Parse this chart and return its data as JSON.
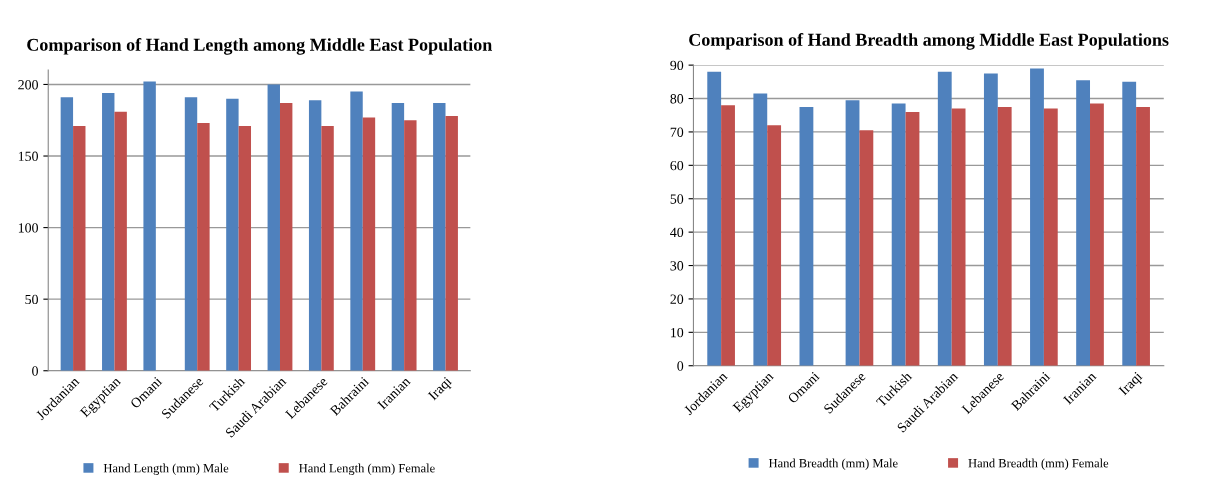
{
  "chart_data": [
    {
      "type": "bar",
      "title": "Comparison of Hand Length among Middle East Population",
      "categories": [
        "Jordanian",
        "Egyptian",
        "Omani",
        "Sudanese",
        "Turkish",
        "Saudi Arabian",
        "Lebanese",
        "Bahraini",
        "Iranian",
        "Iraqi"
      ],
      "series": [
        {
          "name": "Hand Length (mm) Male",
          "color": "#4f81bd",
          "values": [
            191,
            194,
            202,
            191,
            190,
            200,
            189,
            195,
            187,
            187
          ]
        },
        {
          "name": "Hand Length (mm) Female",
          "color": "#c0504d",
          "values": [
            171,
            181,
            null,
            173,
            171,
            187,
            171,
            177,
            175,
            178
          ]
        }
      ],
      "ylim": [
        0,
        210
      ],
      "yticks": [
        0,
        50,
        100,
        150,
        200
      ],
      "grid": "y",
      "legend": "bottom"
    },
    {
      "type": "bar",
      "title": "Comparison of Hand Breadth among Middle East Populations",
      "categories": [
        "Jordanian",
        "Egyptian",
        "Omani",
        "Sudanese",
        "Turkish",
        "Saudi Arabian",
        "Lebanese",
        "Bahraini",
        "Iranian",
        "Iraqi"
      ],
      "series": [
        {
          "name": "Hand Breadth (mm) Male",
          "color": "#4f81bd",
          "values": [
            88,
            81.5,
            77.5,
            79.5,
            78.5,
            88,
            87.5,
            89,
            85.5,
            85
          ]
        },
        {
          "name": "Hand Breadth (mm) Female",
          "color": "#c0504d",
          "values": [
            78,
            72,
            null,
            70.5,
            76,
            77,
            77.5,
            77,
            78.5,
            77.5
          ]
        }
      ],
      "ylim": [
        0,
        90
      ],
      "yticks": [
        0,
        10,
        20,
        30,
        40,
        50,
        60,
        70,
        80,
        90
      ],
      "grid": "y",
      "legend": "bottom"
    }
  ]
}
